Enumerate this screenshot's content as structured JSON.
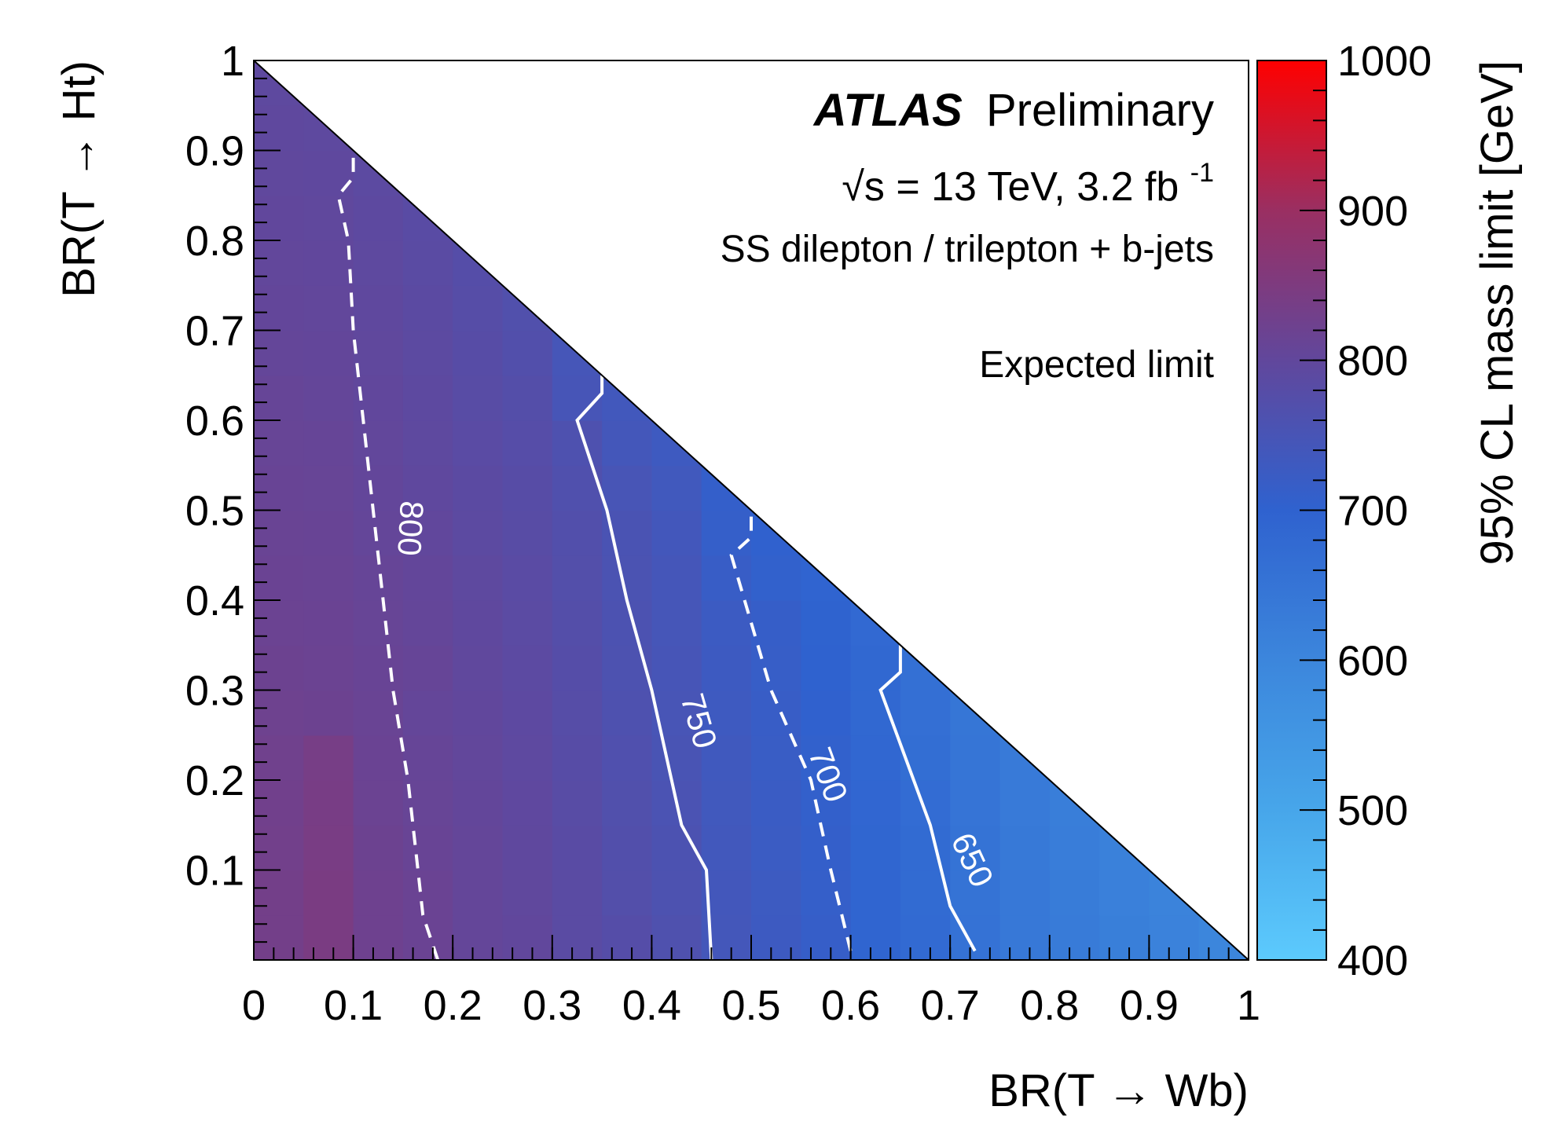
{
  "chart_data": {
    "type": "heatmap",
    "experiment": "ATLAS",
    "status": "Preliminary",
    "energy_label": "√s = 13 TeV, 3.2 fb",
    "lumi_exponent": "-1",
    "channel": "SS dilepton / trilepton + b-jets",
    "limit_type": "Expected limit",
    "xlabel": "BR(T → Wb)",
    "ylabel": "BR(T → Ht)",
    "zlabel": "95% CL mass limit [GeV]",
    "xlim": [
      0,
      1
    ],
    "ylim": [
      0,
      1
    ],
    "zlim": [
      400,
      1000
    ],
    "x_ticks": [
      0,
      0.1,
      0.2,
      0.3,
      0.4,
      0.5,
      0.6,
      0.7,
      0.8,
      0.9,
      1
    ],
    "x_tick_labels": [
      "0",
      "0.1",
      "0.2",
      "0.3",
      "0.4",
      "0.5",
      "0.6",
      "0.7",
      "0.8",
      "0.9",
      "1"
    ],
    "y_ticks": [
      0.1,
      0.2,
      0.3,
      0.4,
      0.5,
      0.6,
      0.7,
      0.8,
      0.9,
      1
    ],
    "y_tick_labels": [
      "0.1",
      "0.2",
      "0.3",
      "0.4",
      "0.5",
      "0.6",
      "0.7",
      "0.8",
      "0.9",
      "1"
    ],
    "z_ticks": [
      400,
      500,
      600,
      700,
      800,
      900,
      1000
    ],
    "z_tick_labels": [
      "400",
      "500",
      "600",
      "700",
      "800",
      "900",
      "1000"
    ],
    "colormap": [
      {
        "v": 400,
        "color": "#5ccafd"
      },
      {
        "v": 500,
        "color": "#47a6ea"
      },
      {
        "v": 600,
        "color": "#3c86dc"
      },
      {
        "v": 700,
        "color": "#2f62cf"
      },
      {
        "v": 800,
        "color": "#61479c"
      },
      {
        "v": 900,
        "color": "#9a2f62"
      },
      {
        "v": 1000,
        "color": "#ff0000"
      }
    ],
    "cells": [
      [
        0.0,
        0.0,
        832
      ],
      [
        0.05,
        0.0,
        844
      ],
      [
        0.1,
        0.0,
        823
      ],
      [
        0.15,
        0.0,
        815
      ],
      [
        0.2,
        0.0,
        805
      ],
      [
        0.25,
        0.0,
        800
      ],
      [
        0.3,
        0.0,
        786
      ],
      [
        0.35,
        0.0,
        776
      ],
      [
        0.4,
        0.0,
        764
      ],
      [
        0.45,
        0.0,
        742
      ],
      [
        0.5,
        0.0,
        728
      ],
      [
        0.55,
        0.0,
        714
      ],
      [
        0.6,
        0.0,
        692
      ],
      [
        0.65,
        0.0,
        678
      ],
      [
        0.7,
        0.0,
        655
      ],
      [
        0.75,
        0.0,
        640
      ],
      [
        0.8,
        0.0,
        630
      ],
      [
        0.85,
        0.0,
        620
      ],
      [
        0.9,
        0.0,
        610
      ],
      [
        0.95,
        0.0,
        600
      ],
      [
        0.0,
        0.05,
        832
      ],
      [
        0.05,
        0.05,
        844
      ],
      [
        0.1,
        0.05,
        823
      ],
      [
        0.15,
        0.05,
        815
      ],
      [
        0.2,
        0.05,
        805
      ],
      [
        0.25,
        0.05,
        798
      ],
      [
        0.3,
        0.05,
        786
      ],
      [
        0.35,
        0.05,
        772
      ],
      [
        0.4,
        0.05,
        760
      ],
      [
        0.45,
        0.05,
        740
      ],
      [
        0.5,
        0.05,
        727
      ],
      [
        0.55,
        0.05,
        712
      ],
      [
        0.6,
        0.05,
        692
      ],
      [
        0.65,
        0.05,
        676
      ],
      [
        0.7,
        0.05,
        653
      ],
      [
        0.75,
        0.05,
        638
      ],
      [
        0.8,
        0.05,
        628
      ],
      [
        0.85,
        0.05,
        618
      ],
      [
        0.9,
        0.05,
        608
      ],
      [
        0.0,
        0.1,
        830
      ],
      [
        0.05,
        0.1,
        842
      ],
      [
        0.1,
        0.1,
        820
      ],
      [
        0.15,
        0.1,
        812
      ],
      [
        0.2,
        0.1,
        805
      ],
      [
        0.25,
        0.1,
        796
      ],
      [
        0.3,
        0.1,
        784
      ],
      [
        0.35,
        0.1,
        770
      ],
      [
        0.4,
        0.1,
        758
      ],
      [
        0.45,
        0.1,
        737
      ],
      [
        0.5,
        0.1,
        724
      ],
      [
        0.55,
        0.1,
        710
      ],
      [
        0.6,
        0.1,
        690
      ],
      [
        0.65,
        0.1,
        674
      ],
      [
        0.7,
        0.1,
        652
      ],
      [
        0.75,
        0.1,
        636
      ],
      [
        0.8,
        0.1,
        625
      ],
      [
        0.85,
        0.1,
        615
      ],
      [
        0.0,
        0.15,
        828
      ],
      [
        0.05,
        0.15,
        840
      ],
      [
        0.1,
        0.15,
        818
      ],
      [
        0.15,
        0.15,
        810
      ],
      [
        0.2,
        0.15,
        803
      ],
      [
        0.25,
        0.15,
        795
      ],
      [
        0.3,
        0.15,
        782
      ],
      [
        0.35,
        0.15,
        768
      ],
      [
        0.4,
        0.15,
        755
      ],
      [
        0.45,
        0.15,
        735
      ],
      [
        0.5,
        0.15,
        722
      ],
      [
        0.55,
        0.15,
        708
      ],
      [
        0.6,
        0.15,
        688
      ],
      [
        0.65,
        0.15,
        672
      ],
      [
        0.7,
        0.15,
        650
      ],
      [
        0.75,
        0.15,
        634
      ],
      [
        0.8,
        0.15,
        622
      ],
      [
        0.0,
        0.2,
        826
      ],
      [
        0.05,
        0.2,
        838
      ],
      [
        0.1,
        0.2,
        816
      ],
      [
        0.15,
        0.2,
        808
      ],
      [
        0.2,
        0.2,
        801
      ],
      [
        0.25,
        0.2,
        793
      ],
      [
        0.3,
        0.2,
        780
      ],
      [
        0.35,
        0.2,
        765
      ],
      [
        0.4,
        0.2,
        752
      ],
      [
        0.45,
        0.2,
        733
      ],
      [
        0.5,
        0.2,
        720
      ],
      [
        0.55,
        0.2,
        705
      ],
      [
        0.6,
        0.2,
        686
      ],
      [
        0.65,
        0.2,
        668
      ],
      [
        0.7,
        0.2,
        648
      ],
      [
        0.75,
        0.2,
        632
      ],
      [
        0.0,
        0.25,
        822
      ],
      [
        0.05,
        0.25,
        820
      ],
      [
        0.1,
        0.25,
        814
      ],
      [
        0.15,
        0.25,
        806
      ],
      [
        0.2,
        0.25,
        800
      ],
      [
        0.25,
        0.25,
        791
      ],
      [
        0.3,
        0.25,
        778
      ],
      [
        0.35,
        0.25,
        762
      ],
      [
        0.4,
        0.25,
        750
      ],
      [
        0.45,
        0.25,
        730
      ],
      [
        0.5,
        0.25,
        718
      ],
      [
        0.55,
        0.25,
        702
      ],
      [
        0.6,
        0.25,
        684
      ],
      [
        0.65,
        0.25,
        665
      ],
      [
        0.7,
        0.25,
        645
      ],
      [
        0.0,
        0.3,
        820
      ],
      [
        0.05,
        0.3,
        818
      ],
      [
        0.1,
        0.3,
        812
      ],
      [
        0.15,
        0.3,
        808
      ],
      [
        0.2,
        0.3,
        798
      ],
      [
        0.25,
        0.3,
        789
      ],
      [
        0.3,
        0.3,
        776
      ],
      [
        0.35,
        0.3,
        760
      ],
      [
        0.4,
        0.3,
        748
      ],
      [
        0.45,
        0.3,
        728
      ],
      [
        0.5,
        0.3,
        716
      ],
      [
        0.55,
        0.3,
        700
      ],
      [
        0.6,
        0.3,
        682
      ],
      [
        0.65,
        0.3,
        662
      ],
      [
        0.0,
        0.35,
        818
      ],
      [
        0.05,
        0.35,
        816
      ],
      [
        0.1,
        0.35,
        810
      ],
      [
        0.15,
        0.35,
        806
      ],
      [
        0.2,
        0.35,
        796
      ],
      [
        0.25,
        0.35,
        787
      ],
      [
        0.3,
        0.35,
        774
      ],
      [
        0.35,
        0.35,
        758
      ],
      [
        0.4,
        0.35,
        746
      ],
      [
        0.45,
        0.35,
        726
      ],
      [
        0.5,
        0.35,
        713
      ],
      [
        0.55,
        0.35,
        698
      ],
      [
        0.6,
        0.35,
        680
      ],
      [
        0.0,
        0.4,
        816
      ],
      [
        0.05,
        0.4,
        814
      ],
      [
        0.1,
        0.4,
        808
      ],
      [
        0.15,
        0.4,
        804
      ],
      [
        0.2,
        0.4,
        794
      ],
      [
        0.25,
        0.4,
        785
      ],
      [
        0.3,
        0.4,
        772
      ],
      [
        0.35,
        0.4,
        756
      ],
      [
        0.4,
        0.4,
        744
      ],
      [
        0.45,
        0.4,
        718
      ],
      [
        0.5,
        0.4,
        705
      ],
      [
        0.55,
        0.4,
        695
      ],
      [
        0.0,
        0.45,
        814
      ],
      [
        0.05,
        0.45,
        812
      ],
      [
        0.1,
        0.45,
        806
      ],
      [
        0.15,
        0.45,
        800
      ],
      [
        0.2,
        0.45,
        790
      ],
      [
        0.25,
        0.45,
        782
      ],
      [
        0.3,
        0.45,
        770
      ],
      [
        0.35,
        0.45,
        754
      ],
      [
        0.4,
        0.45,
        740
      ],
      [
        0.45,
        0.45,
        712
      ],
      [
        0.5,
        0.45,
        702
      ],
      [
        0.0,
        0.5,
        812
      ],
      [
        0.05,
        0.5,
        810
      ],
      [
        0.1,
        0.5,
        804
      ],
      [
        0.15,
        0.5,
        796
      ],
      [
        0.2,
        0.5,
        788
      ],
      [
        0.25,
        0.5,
        780
      ],
      [
        0.3,
        0.5,
        766
      ],
      [
        0.35,
        0.5,
        750
      ],
      [
        0.4,
        0.5,
        735
      ],
      [
        0.45,
        0.5,
        710
      ],
      [
        0.0,
        0.55,
        810
      ],
      [
        0.05,
        0.55,
        808
      ],
      [
        0.1,
        0.55,
        802
      ],
      [
        0.15,
        0.55,
        794
      ],
      [
        0.2,
        0.55,
        785
      ],
      [
        0.25,
        0.55,
        777
      ],
      [
        0.3,
        0.55,
        762
      ],
      [
        0.35,
        0.55,
        742
      ],
      [
        0.4,
        0.55,
        730
      ],
      [
        0.0,
        0.6,
        808
      ],
      [
        0.05,
        0.6,
        806
      ],
      [
        0.1,
        0.6,
        800
      ],
      [
        0.15,
        0.6,
        792
      ],
      [
        0.2,
        0.6,
        782
      ],
      [
        0.25,
        0.6,
        774
      ],
      [
        0.3,
        0.6,
        748
      ],
      [
        0.35,
        0.6,
        738
      ],
      [
        0.0,
        0.65,
        806
      ],
      [
        0.05,
        0.65,
        804
      ],
      [
        0.1,
        0.65,
        798
      ],
      [
        0.15,
        0.65,
        790
      ],
      [
        0.2,
        0.65,
        780
      ],
      [
        0.25,
        0.65,
        770
      ],
      [
        0.3,
        0.65,
        745
      ],
      [
        0.0,
        0.7,
        804
      ],
      [
        0.05,
        0.7,
        802
      ],
      [
        0.1,
        0.7,
        796
      ],
      [
        0.15,
        0.7,
        788
      ],
      [
        0.2,
        0.7,
        778
      ],
      [
        0.25,
        0.7,
        768
      ],
      [
        0.0,
        0.75,
        802
      ],
      [
        0.05,
        0.75,
        800
      ],
      [
        0.1,
        0.75,
        794
      ],
      [
        0.15,
        0.75,
        786
      ],
      [
        0.2,
        0.75,
        776
      ],
      [
        0.0,
        0.8,
        800
      ],
      [
        0.05,
        0.8,
        798
      ],
      [
        0.1,
        0.8,
        792
      ],
      [
        0.15,
        0.8,
        784
      ],
      [
        0.0,
        0.85,
        798
      ],
      [
        0.05,
        0.85,
        796
      ],
      [
        0.1,
        0.85,
        790
      ],
      [
        0.0,
        0.9,
        796
      ],
      [
        0.05,
        0.9,
        794
      ],
      [
        0.0,
        0.95,
        794
      ]
    ],
    "cell_size": 0.05,
    "contours": [
      {
        "level": 800,
        "label": "800",
        "style": "dashed",
        "label_at": [
          0.155,
          0.48
        ],
        "label_rotation": 93,
        "points": [
          [
            0.185,
            0
          ],
          [
            0.17,
            0.05
          ],
          [
            0.165,
            0.1
          ],
          [
            0.155,
            0.2
          ],
          [
            0.14,
            0.3
          ],
          [
            0.13,
            0.4
          ],
          [
            0.12,
            0.5
          ],
          [
            0.11,
            0.6
          ],
          [
            0.1,
            0.7
          ],
          [
            0.095,
            0.8
          ],
          [
            0.085,
            0.85
          ],
          [
            0.1,
            0.87
          ],
          [
            0.1,
            0.9
          ]
        ]
      },
      {
        "level": 750,
        "label": "750",
        "style": "solid",
        "label_at": [
          0.445,
          0.265
        ],
        "label_rotation": 74,
        "points": [
          [
            0.46,
            0
          ],
          [
            0.455,
            0.1
          ],
          [
            0.43,
            0.15
          ],
          [
            0.42,
            0.2
          ],
          [
            0.4,
            0.3
          ],
          [
            0.375,
            0.4
          ],
          [
            0.355,
            0.5
          ],
          [
            0.325,
            0.6
          ],
          [
            0.35,
            0.63
          ],
          [
            0.35,
            0.65
          ]
        ]
      },
      {
        "level": 700,
        "label": "700",
        "style": "dashed",
        "label_at": [
          0.575,
          0.205
        ],
        "label_rotation": 70,
        "points": [
          [
            0.6,
            0.01
          ],
          [
            0.58,
            0.1
          ],
          [
            0.56,
            0.2
          ],
          [
            0.52,
            0.3
          ],
          [
            0.48,
            0.45
          ],
          [
            0.5,
            0.47
          ],
          [
            0.5,
            0.5
          ]
        ]
      },
      {
        "level": 650,
        "label": "650",
        "style": "solid",
        "label_at": [
          0.72,
          0.11
        ],
        "label_rotation": 65,
        "points": [
          [
            0.725,
            0.01
          ],
          [
            0.7,
            0.06
          ],
          [
            0.68,
            0.15
          ],
          [
            0.63,
            0.3
          ],
          [
            0.65,
            0.32
          ],
          [
            0.65,
            0.35
          ]
        ]
      }
    ],
    "grid": false,
    "legend": "none"
  }
}
